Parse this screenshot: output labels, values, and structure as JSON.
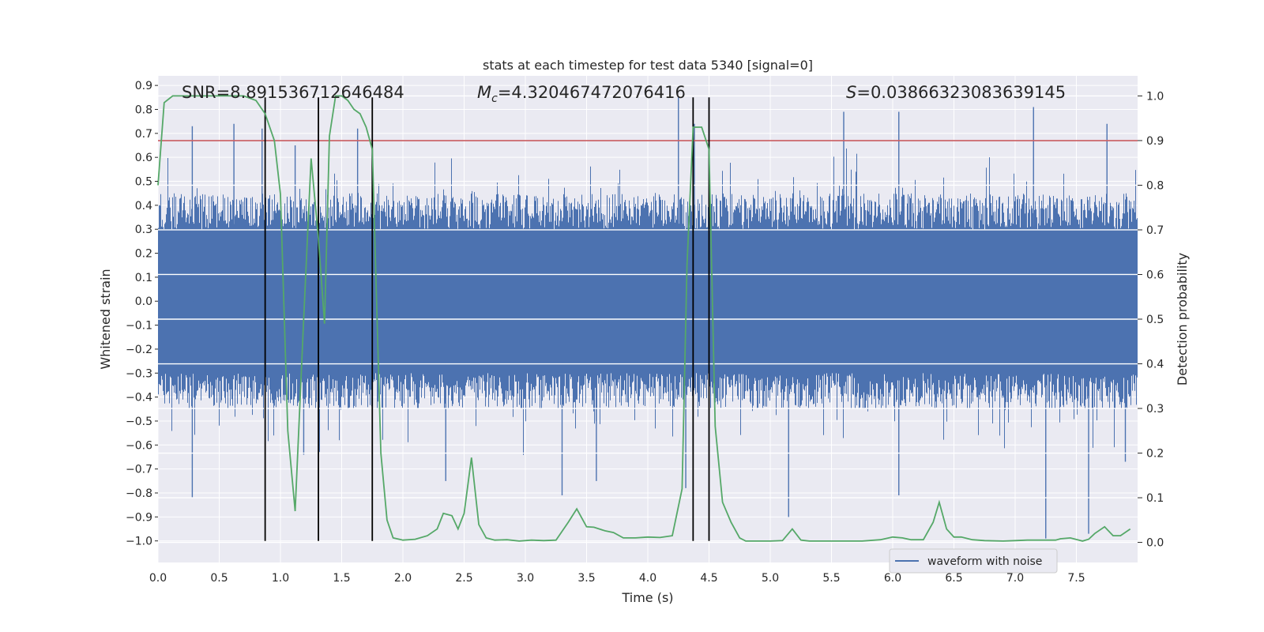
{
  "chart_data": {
    "type": "line",
    "title": "stats at each timestep for test data 5340 [signal=0]",
    "xlabel": "Time (s)",
    "ylabel": "Whitened strain",
    "y2label": "Detection probability",
    "xlim": [
      0.0,
      8.0
    ],
    "ylim": [
      -1.09,
      0.94
    ],
    "y2lim": [
      -0.045,
      1.045
    ],
    "xticks": [
      "0.0",
      "0.5",
      "1.0",
      "1.5",
      "2.0",
      "2.5",
      "3.0",
      "3.5",
      "4.0",
      "4.5",
      "5.0",
      "5.5",
      "6.0",
      "6.5",
      "7.0",
      "7.5"
    ],
    "yticks": [
      "0.9",
      "0.8",
      "0.7",
      "0.6",
      "0.5",
      "0.4",
      "0.3",
      "0.2",
      "0.1",
      "0.0",
      "−0.1",
      "−0.2",
      "−0.3",
      "−0.4",
      "−0.5",
      "−0.6",
      "−0.7",
      "−0.8",
      "−0.9",
      "−1.0"
    ],
    "y2ticks": [
      "1.0",
      "0.9",
      "0.8",
      "0.7",
      "0.6",
      "0.5",
      "0.4",
      "0.3",
      "0.2",
      "0.1",
      "0.0"
    ],
    "annotations": {
      "snr": "SNR=8.891536712646484",
      "mc_symbol": "M",
      "mc_sub": "c",
      "mc_value": "=4.320467472076416",
      "s_symbol": "S",
      "s_value": "=0.03866323083639145"
    },
    "grid": true,
    "legend": {
      "placement": "lower-right",
      "label": "waveform with noise"
    },
    "threshold": {
      "value": 0.9,
      "axis": "y2",
      "color": "#c44e52"
    },
    "vlines_x": [
      0.875,
      1.31,
      1.75,
      4.37,
      4.5
    ],
    "vlines_yrange": [
      -1.0,
      0.85
    ],
    "series": [
      {
        "name": "waveform with noise",
        "color": "#4c72b0",
        "axis": "y",
        "kind": "noise",
        "core_envelope": 0.3,
        "typical_peak": 0.45,
        "highlight_peaks": [
          {
            "x": 0.28,
            "y": 0.73
          },
          {
            "x": 0.28,
            "y": -0.82
          },
          {
            "x": 0.62,
            "y": 0.74
          },
          {
            "x": 0.85,
            "y": 0.72
          },
          {
            "x": 1.12,
            "y": 0.65
          },
          {
            "x": 1.19,
            "y": -0.64
          },
          {
            "x": 1.63,
            "y": 0.72
          },
          {
            "x": 2.35,
            "y": -0.75
          },
          {
            "x": 3.58,
            "y": -0.75
          },
          {
            "x": 3.3,
            "y": -0.81
          },
          {
            "x": 4.25,
            "y": 0.85
          },
          {
            "x": 4.31,
            "y": -0.78
          },
          {
            "x": 4.38,
            "y": 0.74
          },
          {
            "x": 5.15,
            "y": -0.9
          },
          {
            "x": 5.6,
            "y": 0.79
          },
          {
            "x": 6.05,
            "y": 0.79
          },
          {
            "x": 6.05,
            "y": -0.81
          },
          {
            "x": 7.15,
            "y": 0.81
          },
          {
            "x": 7.25,
            "y": -0.99
          },
          {
            "x": 7.6,
            "y": -0.97
          },
          {
            "x": 7.75,
            "y": 0.74
          },
          {
            "x": 7.9,
            "y": -0.67
          }
        ]
      },
      {
        "color": "#55a868",
        "axis": "y2",
        "x": [
          0.0,
          0.05,
          0.12,
          0.2,
          0.3,
          0.4,
          0.5,
          0.6,
          0.7,
          0.8,
          0.875,
          0.95,
          1.0,
          1.06,
          1.12,
          1.19,
          1.25,
          1.31,
          1.36,
          1.4,
          1.45,
          1.5,
          1.55,
          1.6,
          1.65,
          1.7,
          1.75,
          1.82,
          1.87,
          1.92,
          2.0,
          2.1,
          2.2,
          2.28,
          2.33,
          2.4,
          2.45,
          2.5,
          2.56,
          2.62,
          2.68,
          2.75,
          2.85,
          2.95,
          3.05,
          3.15,
          3.25,
          3.35,
          3.42,
          3.5,
          3.56,
          3.65,
          3.72,
          3.8,
          3.9,
          4.0,
          4.1,
          4.2,
          4.28,
          4.32,
          4.37,
          4.44,
          4.5,
          4.55,
          4.61,
          4.68,
          4.75,
          4.8,
          4.9,
          5.0,
          5.1,
          5.18,
          5.25,
          5.32,
          5.45,
          5.6,
          5.75,
          5.9,
          6.0,
          6.08,
          6.15,
          6.25,
          6.33,
          6.38,
          6.44,
          6.5,
          6.56,
          6.65,
          6.75,
          6.9,
          7.0,
          7.1,
          7.2,
          7.28,
          7.33,
          7.37,
          7.45,
          7.55,
          7.6,
          7.65,
          7.73,
          7.8,
          7.86,
          7.94
        ],
        "y": [
          0.8,
          0.985,
          1.0,
          1.0,
          1.0,
          1.0,
          1.0,
          1.0,
          1.0,
          0.99,
          0.96,
          0.9,
          0.78,
          0.25,
          0.07,
          0.5,
          0.86,
          0.68,
          0.49,
          0.91,
          1.0,
          1.0,
          0.99,
          0.97,
          0.96,
          0.93,
          0.88,
          0.2,
          0.05,
          0.01,
          0.005,
          0.007,
          0.015,
          0.03,
          0.065,
          0.06,
          0.03,
          0.065,
          0.19,
          0.04,
          0.01,
          0.005,
          0.006,
          0.003,
          0.005,
          0.004,
          0.005,
          0.045,
          0.075,
          0.035,
          0.034,
          0.026,
          0.022,
          0.01,
          0.01,
          0.012,
          0.011,
          0.015,
          0.12,
          0.62,
          0.93,
          0.93,
          0.88,
          0.26,
          0.09,
          0.045,
          0.01,
          0.003,
          0.003,
          0.003,
          0.004,
          0.03,
          0.005,
          0.003,
          0.003,
          0.003,
          0.003,
          0.006,
          0.012,
          0.01,
          0.006,
          0.006,
          0.045,
          0.09,
          0.03,
          0.012,
          0.012,
          0.006,
          0.004,
          0.003,
          0.004,
          0.005,
          0.005,
          0.005,
          0.005,
          0.008,
          0.01,
          0.003,
          0.007,
          0.02,
          0.035,
          0.015,
          0.015,
          0.03
        ]
      }
    ]
  }
}
